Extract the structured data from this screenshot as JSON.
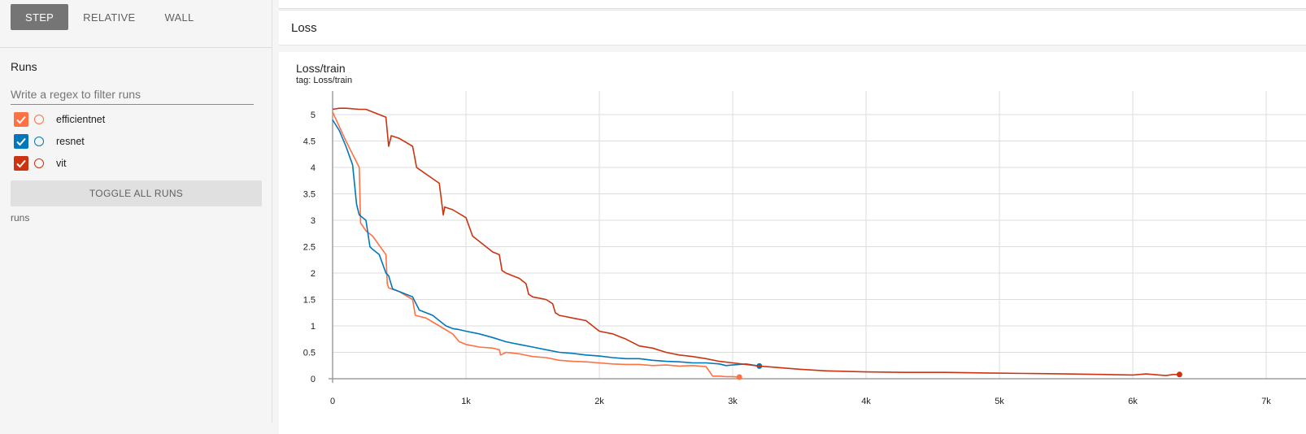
{
  "sidebar": {
    "xaxis_buttons": [
      {
        "label": "STEP",
        "active": true
      },
      {
        "label": "RELATIVE",
        "active": false
      },
      {
        "label": "WALL",
        "active": false
      }
    ],
    "runs_title": "Runs",
    "filter_placeholder": "Write a regex to filter runs",
    "runs": [
      {
        "name": "efficientnet",
        "color": "#ff7043",
        "checked": true
      },
      {
        "name": "resnet",
        "color": "#0077bb",
        "checked": true
      },
      {
        "name": "vit",
        "color": "#cc3311",
        "checked": true
      }
    ],
    "toggle_label": "TOGGLE ALL RUNS",
    "runs_dir": "runs"
  },
  "main": {
    "group_title": "Loss",
    "chart_title": "Loss/train",
    "chart_tag": "tag: Loss/train"
  },
  "chart_data": {
    "type": "line",
    "title": "Loss/train",
    "xlim": [
      0,
      7000
    ],
    "ylim": [
      0,
      5.2
    ],
    "x_ticks": [
      0,
      1000,
      2000,
      3000,
      4000,
      5000,
      6000,
      7000
    ],
    "x_tick_labels": [
      "0",
      "1k",
      "2k",
      "3k",
      "4k",
      "5k",
      "6k",
      "7k"
    ],
    "y_ticks": [
      0,
      0.5,
      1,
      1.5,
      2,
      2.5,
      3,
      3.5,
      4,
      4.5,
      5
    ],
    "y_tick_labels": [
      "0",
      "0.5",
      "1",
      "1.5",
      "2",
      "2.5",
      "3",
      "3.5",
      "4",
      "4.5",
      "5"
    ],
    "grid": true,
    "series": [
      {
        "name": "efficientnet",
        "color": "#ff7043",
        "x": [
          0,
          100,
          200,
          210,
          250,
          300,
          400,
          410,
          420,
          500,
          600,
          620,
          700,
          800,
          900,
          950,
          1000,
          1100,
          1200,
          1250,
          1260,
          1300,
          1400,
          1500,
          1600,
          1700,
          1800,
          1900,
          2000,
          2100,
          2200,
          2300,
          2400,
          2500,
          2600,
          2700,
          2800,
          2850,
          2900,
          2950,
          3000,
          3050
        ],
        "y": [
          5.05,
          4.5,
          4.0,
          2.95,
          2.8,
          2.7,
          2.35,
          1.8,
          1.72,
          1.65,
          1.5,
          1.2,
          1.15,
          1.0,
          0.85,
          0.7,
          0.65,
          0.6,
          0.58,
          0.55,
          0.45,
          0.5,
          0.47,
          0.42,
          0.4,
          0.35,
          0.33,
          0.32,
          0.3,
          0.28,
          0.27,
          0.27,
          0.25,
          0.26,
          0.24,
          0.25,
          0.23,
          0.05,
          0.05,
          0.04,
          0.04,
          0.03
        ]
      },
      {
        "name": "resnet",
        "color": "#0077bb",
        "x": [
          0,
          50,
          100,
          150,
          180,
          200,
          250,
          280,
          300,
          350,
          400,
          420,
          450,
          500,
          550,
          600,
          650,
          700,
          750,
          800,
          850,
          900,
          950,
          1000,
          1100,
          1200,
          1300,
          1400,
          1500,
          1600,
          1700,
          1800,
          1900,
          2000,
          2100,
          2200,
          2300,
          2400,
          2500,
          2600,
          2700,
          2800,
          2900,
          2950,
          3000,
          3100,
          3200
        ],
        "y": [
          4.9,
          4.7,
          4.4,
          4.05,
          3.3,
          3.1,
          3.0,
          2.5,
          2.45,
          2.35,
          2.0,
          1.95,
          1.7,
          1.65,
          1.6,
          1.55,
          1.3,
          1.25,
          1.2,
          1.1,
          1.0,
          0.95,
          0.93,
          0.9,
          0.85,
          0.78,
          0.7,
          0.65,
          0.6,
          0.55,
          0.5,
          0.48,
          0.45,
          0.43,
          0.4,
          0.38,
          0.38,
          0.35,
          0.33,
          0.32,
          0.3,
          0.3,
          0.28,
          0.25,
          0.26,
          0.28,
          0.24
        ]
      },
      {
        "name": "vit",
        "color": "#cc3311",
        "x": [
          0,
          50,
          100,
          200,
          250,
          300,
          400,
          420,
          440,
          500,
          600,
          630,
          640,
          800,
          830,
          840,
          900,
          1000,
          1050,
          1100,
          1150,
          1200,
          1250,
          1270,
          1300,
          1400,
          1450,
          1470,
          1500,
          1600,
          1650,
          1670,
          1700,
          1800,
          1900,
          2000,
          2100,
          2200,
          2300,
          2400,
          2500,
          2600,
          2700,
          2800,
          2900,
          3000,
          3100,
          3200,
          3300,
          3500,
          3700,
          4000,
          4300,
          4600,
          4900,
          5200,
          5500,
          5800,
          6000,
          6100,
          6200,
          6250,
          6300,
          6350
        ],
        "y": [
          5.1,
          5.12,
          5.12,
          5.1,
          5.1,
          5.05,
          4.95,
          4.4,
          4.6,
          4.55,
          4.4,
          4.0,
          3.98,
          3.7,
          3.1,
          3.25,
          3.2,
          3.05,
          2.7,
          2.6,
          2.5,
          2.4,
          2.35,
          2.05,
          2.0,
          1.9,
          1.8,
          1.6,
          1.55,
          1.5,
          1.42,
          1.25,
          1.2,
          1.15,
          1.1,
          0.9,
          0.85,
          0.75,
          0.62,
          0.58,
          0.5,
          0.45,
          0.42,
          0.38,
          0.33,
          0.3,
          0.27,
          0.24,
          0.22,
          0.18,
          0.15,
          0.13,
          0.12,
          0.12,
          0.11,
          0.1,
          0.09,
          0.08,
          0.07,
          0.09,
          0.07,
          0.06,
          0.08,
          0.08
        ]
      }
    ]
  }
}
